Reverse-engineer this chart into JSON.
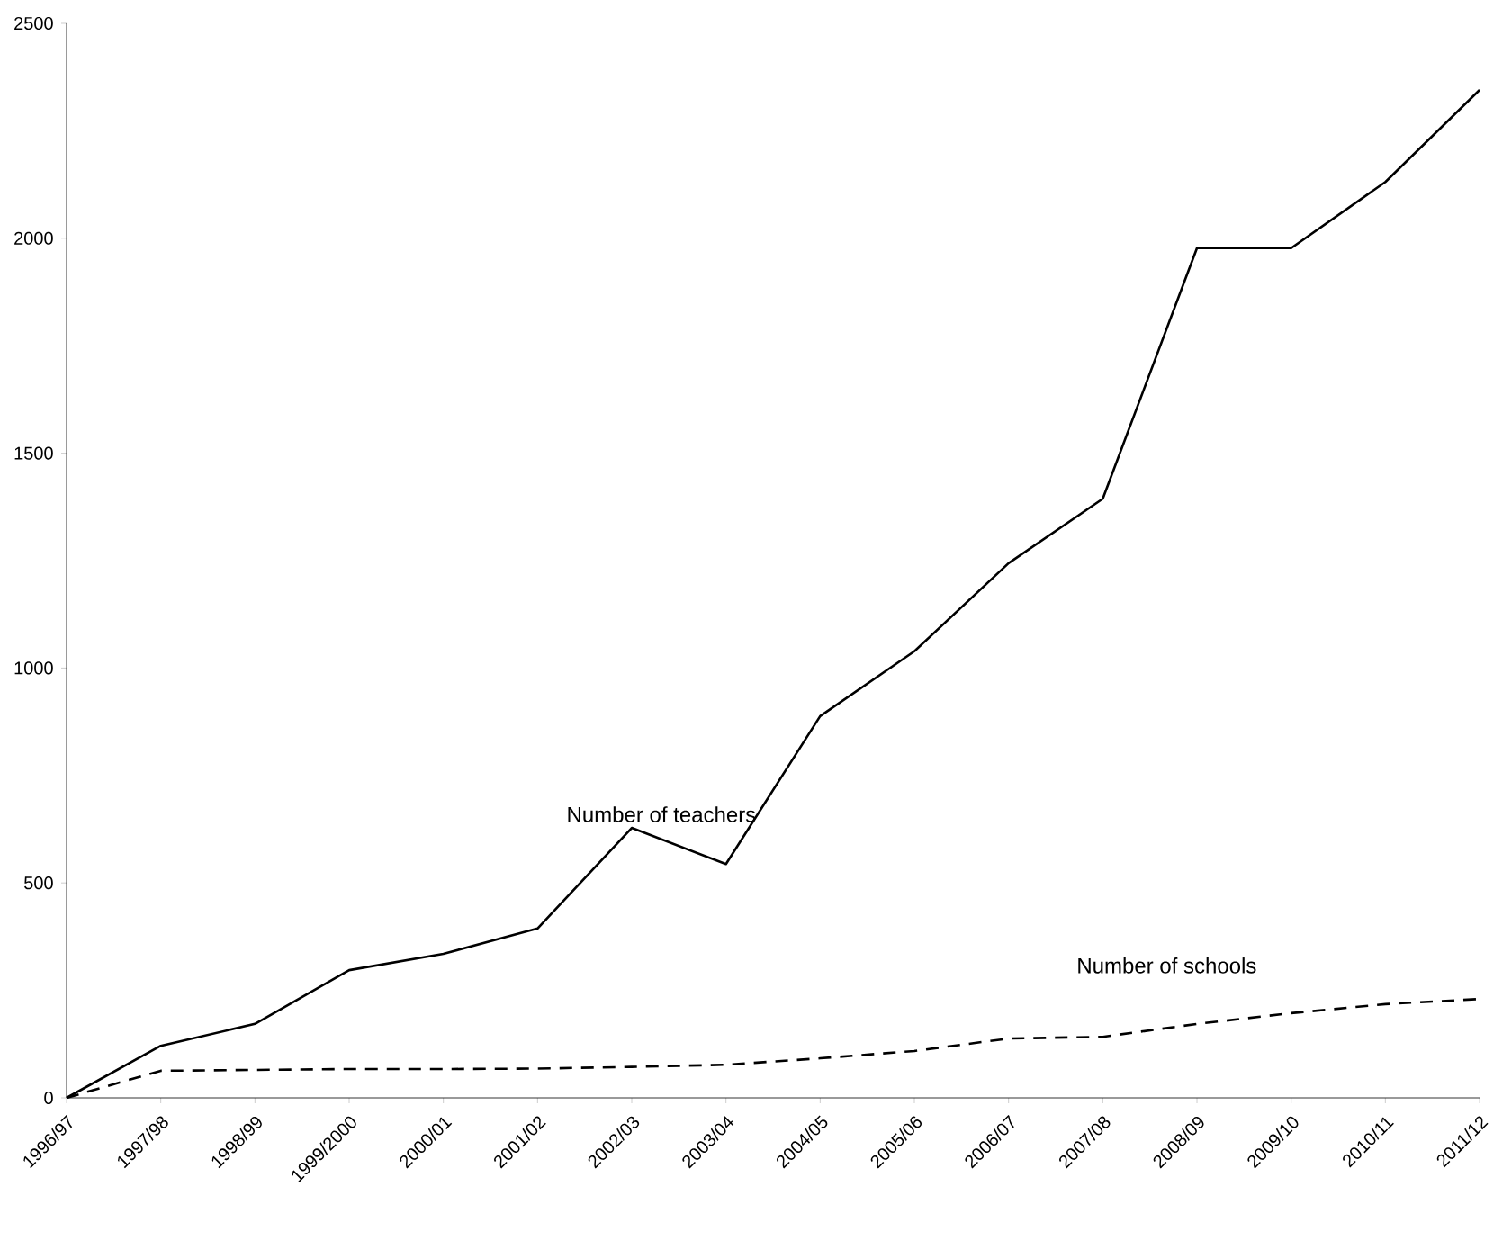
{
  "chart_data": {
    "type": "line",
    "categories": [
      "1996/97",
      "1997/98",
      "1998/99",
      "1999/2000",
      "2000/01",
      "2001/02",
      "2002/03",
      "2003/04",
      "2004/05",
      "2005/06",
      "2006/07",
      "2007/08",
      "2008/09",
      "2009/10",
      "2010/11",
      "2011/12"
    ],
    "series": [
      {
        "name": "Number of teachers",
        "color": "#000000",
        "line_style": "solid",
        "values": [
          0,
          121,
          172,
          297,
          335,
          394,
          628,
          544,
          888,
          1039,
          1244,
          1394,
          1977,
          1977,
          2131,
          2345
        ]
      },
      {
        "name": "Number of schools",
        "color": "#000000",
        "line_style": "dashed",
        "values": [
          0,
          63,
          65,
          67,
          67,
          68,
          72,
          77,
          92,
          109,
          138,
          142,
          172,
          197,
          218,
          230
        ]
      }
    ],
    "ylim": [
      0,
      2500
    ],
    "yticks": [
      0,
      500,
      1000,
      1500,
      2000,
      2500
    ],
    "grid": false,
    "marker": "none"
  }
}
